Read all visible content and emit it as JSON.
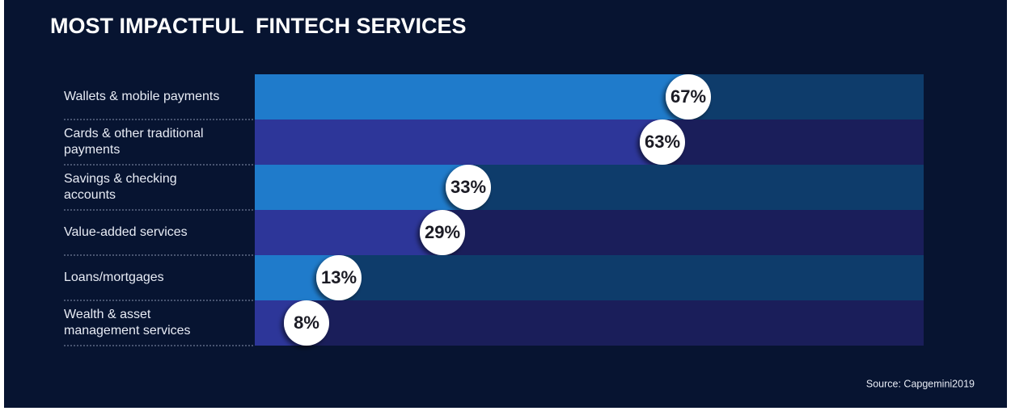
{
  "chart_data": {
    "type": "bar",
    "orientation": "horizontal",
    "title": "MOST IMPACTFUL  FINTECH SERVICES",
    "categories": [
      "Wallets & mobile payments",
      "Cards & other traditional payments",
      "Savings & checking accounts",
      "Value-added services",
      "Loans/mortgages",
      "Wealth & asset management services"
    ],
    "values": [
      67,
      63,
      33,
      29,
      13,
      8
    ],
    "value_labels": [
      "67%",
      "63%",
      "33%",
      "29%",
      "13%",
      "8%"
    ],
    "colors": [
      "#1f7bcb",
      "#2d3699",
      "#1f7bcb",
      "#2d3699",
      "#1f7bcb",
      "#2d3699"
    ],
    "band_colors": [
      "#0e3c6b",
      "#1a1e5a",
      "#0e3c6b",
      "#1a1e5a",
      "#0e3c6b",
      "#1a1e5a"
    ],
    "source": "Source: Capgemini2019"
  }
}
